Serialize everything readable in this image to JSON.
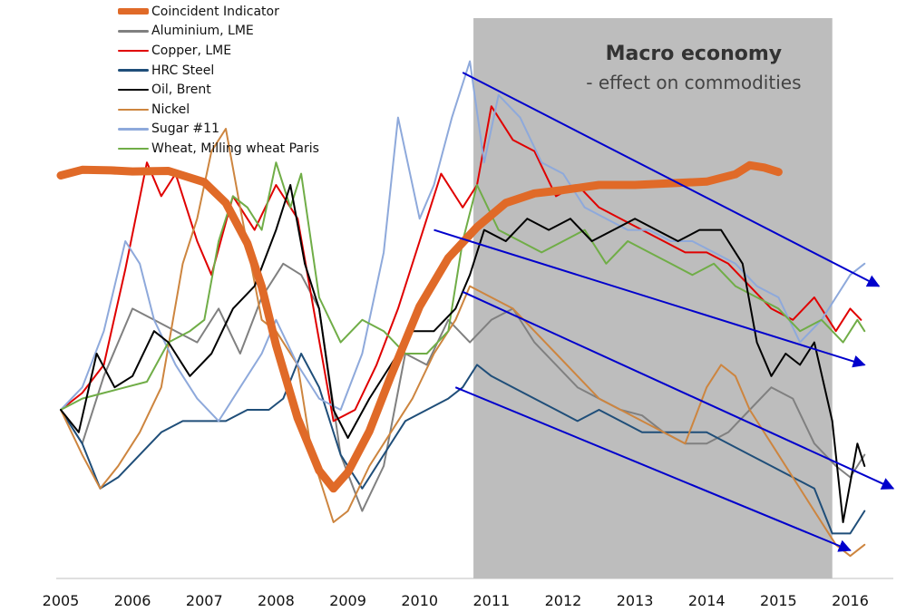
{
  "chart_data": {
    "type": "line",
    "title": "",
    "xlabel": "",
    "ylabel": "",
    "xlim": [
      2005,
      2016.6
    ],
    "ylim": [
      0,
      100
    ],
    "x_ticks": [
      "2005",
      "2006",
      "2007",
      "2008",
      "2009",
      "2010",
      "2011",
      "2012",
      "2013",
      "2014",
      "2015",
      "2016"
    ],
    "legend_position": "top-left",
    "grid": false,
    "shaded_region": {
      "x_start": 2010.75,
      "x_end": 2015.75,
      "color": "#bdbdbd"
    },
    "annotation": {
      "title": "Macro economy",
      "subtitle": "- effect on commodities"
    },
    "trend_arrows": [
      {
        "from": [
          2010.6,
          90
        ],
        "to": [
          2016.4,
          52
        ]
      },
      {
        "from": [
          2010.2,
          62
        ],
        "to": [
          2016.2,
          38
        ]
      },
      {
        "from": [
          2010.6,
          51
        ],
        "to": [
          2016.6,
          16
        ]
      },
      {
        "from": [
          2010.5,
          34
        ],
        "to": [
          2016.0,
          5
        ]
      }
    ],
    "series": [
      {
        "name": "Coincident Indicator",
        "color": "#e06a28",
        "width": 9,
        "x": [
          2005.0,
          2005.3,
          2005.7,
          2006.0,
          2006.5,
          2007.0,
          2007.3,
          2007.6,
          2007.8,
          2008.0,
          2008.3,
          2008.6,
          2008.8,
          2009.0,
          2009.3,
          2009.6,
          2010.0,
          2010.4,
          2010.8,
          2011.2,
          2011.6,
          2012.0,
          2012.5,
          2013.0,
          2013.5,
          2014.0,
          2014.4,
          2014.6,
          2014.8,
          2015.0
        ],
        "y": [
          71.7,
          72.7,
          72.6,
          72.4,
          72.5,
          70.5,
          66.8,
          59.6,
          51.9,
          41.5,
          28.5,
          19.2,
          16.0,
          18.9,
          26.2,
          36.0,
          48.4,
          57.0,
          62.5,
          66.8,
          68.5,
          69.1,
          70.0,
          70.0,
          70.3,
          70.6,
          71.9,
          73.5,
          73.1,
          72.3
        ]
      },
      {
        "name": "Aluminium, LME",
        "color": "#808080",
        "width": 2,
        "x": [
          2005.0,
          2005.3,
          2005.6,
          2006.0,
          2006.3,
          2006.6,
          2006.9,
          2007.2,
          2007.5,
          2007.8,
          2008.1,
          2008.35,
          2008.6,
          2008.9,
          2009.2,
          2009.5,
          2009.8,
          2010.1,
          2010.4,
          2010.7,
          2011.0,
          2011.3,
          2011.6,
          2011.9,
          2012.2,
          2012.5,
          2012.8,
          2013.1,
          2013.4,
          2013.7,
          2014.0,
          2014.3,
          2014.6,
          2014.9,
          2015.2,
          2015.5,
          2015.8,
          2016.0,
          2016.2
        ],
        "y": [
          30,
          24,
          36,
          48,
          46,
          44,
          42,
          48,
          40,
          50,
          56,
          54,
          48,
          22,
          12,
          20,
          40,
          38,
          46,
          42,
          46,
          48,
          42,
          38,
          34,
          32,
          30,
          29,
          26,
          24,
          24,
          26,
          30,
          34,
          32,
          24,
          20,
          18,
          22
        ]
      },
      {
        "name": "Copper, LME",
        "color": "#e00000",
        "width": 2,
        "x": [
          2005.0,
          2005.3,
          2005.6,
          2005.9,
          2006.2,
          2006.4,
          2006.6,
          2006.9,
          2007.1,
          2007.4,
          2007.7,
          2008.0,
          2008.3,
          2008.55,
          2008.8,
          2009.1,
          2009.4,
          2009.7,
          2010.0,
          2010.3,
          2010.6,
          2010.8,
          2011.0,
          2011.3,
          2011.6,
          2011.9,
          2012.2,
          2012.5,
          2012.8,
          2013.1,
          2013.4,
          2013.7,
          2014.0,
          2014.3,
          2014.6,
          2014.9,
          2015.2,
          2015.5,
          2015.8,
          2016.0,
          2016.15
        ],
        "y": [
          30,
          33,
          38,
          55,
          74,
          68,
          72,
          60,
          54,
          68,
          62,
          70,
          64,
          46,
          28,
          30,
          38,
          48,
          60,
          72,
          66,
          70,
          84,
          78,
          76,
          68,
          70,
          66,
          64,
          62,
          60,
          58,
          58,
          56,
          52,
          48,
          46,
          50,
          44,
          48,
          46
        ]
      },
      {
        "name": "HRC Steel",
        "color": "#1f4e79",
        "width": 2,
        "x": [
          2005.0,
          2005.3,
          2005.55,
          2005.8,
          2006.1,
          2006.4,
          2006.7,
          2007.0,
          2007.3,
          2007.6,
          2007.9,
          2008.1,
          2008.35,
          2008.6,
          2008.9,
          2009.2,
          2009.5,
          2009.8,
          2010.1,
          2010.4,
          2010.6,
          2010.8,
          2011.0,
          2011.3,
          2011.6,
          2011.9,
          2012.2,
          2012.5,
          2012.8,
          2013.1,
          2013.4,
          2013.7,
          2014.0,
          2014.3,
          2014.6,
          2014.9,
          2015.2,
          2015.5,
          2015.75,
          2016.0,
          2016.2
        ],
        "y": [
          30,
          24,
          16,
          18,
          22,
          26,
          28,
          28,
          28,
          30,
          30,
          32,
          40,
          34,
          22,
          16,
          22,
          28,
          30,
          32,
          34,
          38,
          36,
          34,
          32,
          30,
          28,
          30,
          28,
          26,
          26,
          26,
          26,
          24,
          22,
          20,
          18,
          16,
          8,
          8,
          12
        ]
      },
      {
        "name": "Oil, Brent",
        "color": "#000000",
        "width": 2,
        "x": [
          2005.0,
          2005.25,
          2005.5,
          2005.75,
          2006.0,
          2006.3,
          2006.5,
          2006.8,
          2007.1,
          2007.4,
          2007.7,
          2008.0,
          2008.2,
          2008.4,
          2008.6,
          2008.8,
          2009.0,
          2009.3,
          2009.6,
          2009.9,
          2010.2,
          2010.5,
          2010.7,
          2010.9,
          2011.2,
          2011.5,
          2011.8,
          2012.1,
          2012.4,
          2012.7,
          2013.0,
          2013.3,
          2013.6,
          2013.9,
          2014.2,
          2014.5,
          2014.7,
          2014.9,
          2015.1,
          2015.3,
          2015.5,
          2015.75,
          2015.9,
          2016.1,
          2016.2
        ],
        "y": [
          30,
          26,
          40,
          34,
          36,
          44,
          42,
          36,
          40,
          48,
          52,
          62,
          70,
          56,
          48,
          30,
          25,
          32,
          38,
          44,
          44,
          48,
          54,
          62,
          60,
          64,
          62,
          64,
          60,
          62,
          64,
          62,
          60,
          62,
          62,
          56,
          42,
          36,
          40,
          38,
          42,
          28,
          10,
          24,
          20
        ]
      },
      {
        "name": "Nickel",
        "color": "#cd853f",
        "width": 2,
        "x": [
          2005.0,
          2005.3,
          2005.55,
          2005.8,
          2006.1,
          2006.4,
          2006.7,
          2006.9,
          2007.1,
          2007.3,
          2007.5,
          2007.8,
          2008.0,
          2008.3,
          2008.5,
          2008.8,
          2009.0,
          2009.3,
          2009.6,
          2009.9,
          2010.2,
          2010.5,
          2010.7,
          2011.0,
          2011.3,
          2011.6,
          2011.9,
          2012.2,
          2012.5,
          2012.8,
          2013.1,
          2013.4,
          2013.7,
          2014.0,
          2014.2,
          2014.4,
          2014.6,
          2014.9,
          2015.2,
          2015.5,
          2015.8,
          2016.0,
          2016.2
        ],
        "y": [
          30,
          22,
          16,
          20,
          26,
          34,
          56,
          64,
          76,
          80,
          66,
          46,
          44,
          38,
          22,
          10,
          12,
          20,
          26,
          32,
          40,
          46,
          52,
          50,
          48,
          44,
          40,
          36,
          32,
          30,
          28,
          26,
          24,
          34,
          38,
          36,
          30,
          24,
          18,
          12,
          6,
          4,
          6
        ]
      },
      {
        "name": "Sugar #11",
        "color": "#8ea9db",
        "width": 2,
        "x": [
          2005.0,
          2005.3,
          2005.6,
          2005.9,
          2006.1,
          2006.3,
          2006.6,
          2006.9,
          2007.2,
          2007.5,
          2007.8,
          2008.0,
          2008.3,
          2008.6,
          2008.9,
          2009.2,
          2009.5,
          2009.7,
          2010.0,
          2010.2,
          2010.45,
          2010.7,
          2010.9,
          2011.1,
          2011.4,
          2011.7,
          2012.0,
          2012.3,
          2012.6,
          2012.9,
          2013.2,
          2013.5,
          2013.8,
          2014.1,
          2014.4,
          2014.7,
          2015.0,
          2015.3,
          2015.6,
          2015.8,
          2016.0,
          2016.2
        ],
        "y": [
          30,
          34,
          44,
          60,
          56,
          46,
          38,
          32,
          28,
          34,
          40,
          46,
          38,
          32,
          30,
          40,
          58,
          82,
          64,
          70,
          82,
          92,
          74,
          86,
          82,
          74,
          72,
          66,
          64,
          62,
          62,
          60,
          60,
          58,
          56,
          52,
          50,
          42,
          46,
          50,
          54,
          56
        ]
      },
      {
        "name": "Wheat, Milling wheat Paris",
        "color": "#70ad47",
        "width": 2,
        "x": [
          2005.0,
          2005.3,
          2005.6,
          2005.9,
          2006.2,
          2006.5,
          2006.8,
          2007.0,
          2007.2,
          2007.4,
          2007.6,
          2007.8,
          2008.0,
          2008.2,
          2008.35,
          2008.6,
          2008.9,
          2009.2,
          2009.5,
          2009.8,
          2010.1,
          2010.4,
          2010.6,
          2010.8,
          2011.1,
          2011.4,
          2011.7,
          2012.0,
          2012.3,
          2012.6,
          2012.9,
          2013.2,
          2013.5,
          2013.8,
          2014.1,
          2014.4,
          2014.7,
          2015.0,
          2015.3,
          2015.6,
          2015.9,
          2016.1,
          2016.2
        ],
        "y": [
          30,
          32,
          33,
          34,
          35,
          42,
          44,
          46,
          60,
          68,
          66,
          62,
          74,
          66,
          72,
          50,
          42,
          46,
          44,
          40,
          40,
          44,
          60,
          70,
          62,
          60,
          58,
          60,
          62,
          56,
          60,
          58,
          56,
          54,
          56,
          52,
          50,
          48,
          44,
          46,
          42,
          46,
          44
        ]
      }
    ]
  }
}
